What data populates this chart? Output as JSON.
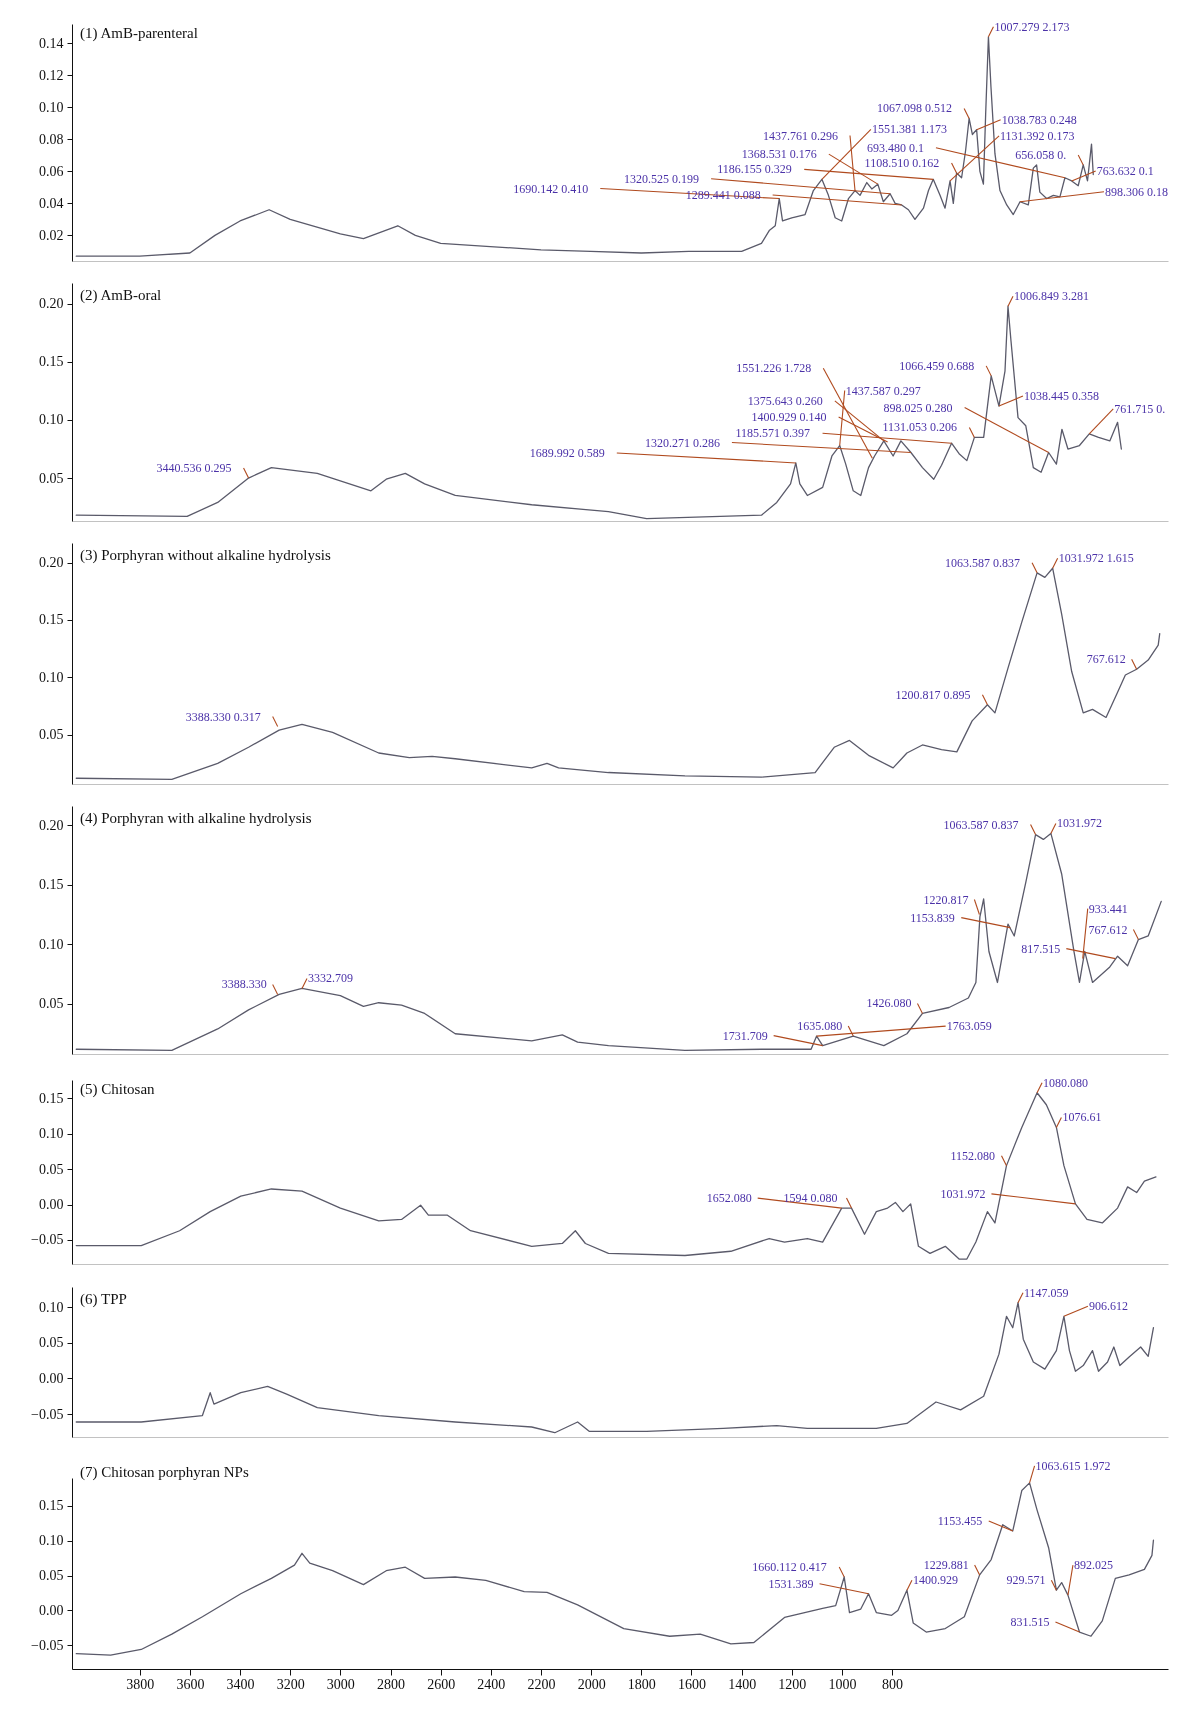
{
  "chart_data": [
    {
      "type": "line",
      "title": "(1) AmB-parenteral",
      "xlim": [
        4070,
        -300
      ],
      "ylim": [
        0.004,
        0.152
      ],
      "yticks": [
        0.02,
        0.04,
        0.06,
        0.08,
        {
          "value": 0.1,
          "label": "0.10"
        },
        0.12,
        0.14
      ],
      "tick_labels": "y",
      "series": [
        {
          "color": "#5a5a6a",
          "x": [
            4053,
            3800,
            3600,
            3500,
            3400,
            3284,
            3200,
            3000,
            2908,
            2771,
            2701,
            2600,
            2402,
            2200,
            2002,
            1800,
            1611,
            1400,
            1321,
            1290,
            1266,
            1250,
            1237,
            1200,
            1147,
            1114,
            1080,
            1054,
            1027,
            1001,
            974,
            948,
            928,
            901,
            881,
            857,
            835,
            808,
            788,
            762,
            735,
            709,
            675,
            655,
            636,
            609,
            589,
            569,
            556,
            543,
            523,
            507,
            493,
            480,
            463,
            450,
            436,
            427,
            416,
            406,
            390,
            370,
            343,
            317,
            290,
            257,
            237,
            224,
            211,
            184,
            157,
            131,
            111,
            84,
            58,
            38,
            21,
            5,
            -2
          ],
          "values": [
            0.007,
            0.007,
            0.009,
            0.02,
            0.029,
            0.036,
            0.03,
            0.021,
            0.018,
            0.026,
            0.02,
            0.015,
            0.013,
            0.011,
            0.01,
            0.009,
            0.01,
            0.01,
            0.015,
            0.023,
            0.026,
            0.043,
            0.029,
            0.031,
            0.033,
            0.048,
            0.055,
            0.045,
            0.031,
            0.029,
            0.043,
            0.048,
            0.045,
            0.053,
            0.049,
            0.052,
            0.041,
            0.046,
            0.04,
            0.039,
            0.036,
            0.03,
            0.037,
            0.048,
            0.055,
            0.045,
            0.037,
            0.054,
            0.04,
            0.059,
            0.056,
            0.073,
            0.093,
            0.083,
            0.086,
            0.06,
            0.052,
            0.096,
            0.144,
            0.113,
            0.071,
            0.048,
            0.039,
            0.033,
            0.041,
            0.039,
            0.062,
            0.064,
            0.047,
            0.043,
            0.045,
            0.044,
            0.056,
            0.054,
            0.051,
            0.064,
            0.054,
            0.077,
            0.058
          ]
        }
      ],
      "annotations": [
        {
          "text": "1007.279 2.173",
          "x": 416,
          "y": 0.144
        },
        {
          "text": "1067.098 0.512",
          "x": 493,
          "y": 0.093
        },
        {
          "text": "1038.783 0.248",
          "x": 463,
          "y": 0.086
        },
        {
          "text": "1108.510 0.162",
          "x": 543,
          "y": 0.059
        },
        {
          "text": "1186.155 0.329",
          "x": 636,
          "y": 0.055
        },
        {
          "text": "656.058 0.",
          "x": 38,
          "y": 0.064
        },
        {
          "text": "693.480 0.1",
          "x": 111,
          "y": 0.056
        },
        {
          "text": "763.632 0.1",
          "x": 84,
          "y": 0.054
        },
        {
          "text": "898.306 0.18",
          "x": 290,
          "y": 0.041
        },
        {
          "text": "1131.392 0.173",
          "x": 569,
          "y": 0.054
        },
        {
          "text": "1289.441 0.088",
          "x": 762,
          "y": 0.039
        },
        {
          "text": "1368.531 0.176",
          "x": 857,
          "y": 0.052
        },
        {
          "text": "1320.525 0.199",
          "x": 808,
          "y": 0.046
        },
        {
          "text": "1437.761 0.296",
          "x": 948,
          "y": 0.048
        },
        {
          "text": "1551.381 1.173",
          "x": 1080,
          "y": 0.055
        },
        {
          "text": "1690.142 0.410",
          "x": 1250,
          "y": 0.043
        }
      ]
    },
    {
      "type": "line",
      "title": "(2) AmB-oral",
      "xlim": [
        4070,
        -300
      ],
      "ylim": [
        0.013,
        0.218
      ],
      "yticks": [
        0.05,
        {
          "value": 0.1,
          "label": "0.10"
        },
        0.15,
        {
          "value": 0.2,
          "label": "0.20"
        }
      ],
      "tick_labels": "y",
      "series": [
        {
          "color": "#5a5a6a",
          "x": [
            4053,
            3611,
            3489,
            3366,
            3275,
            3092,
            2878,
            2817,
            2741,
            2664,
            2542,
            2237,
            1931,
            1779,
            1321,
            1260,
            1205,
            1184,
            1168,
            1138,
            1077,
            1040,
            1009,
            985,
            955,
            925,
            894,
            870,
            833,
            796,
            765,
            725,
            679,
            634,
            603,
            563,
            533,
            502,
            472,
            435,
            405,
            374,
            350,
            338,
            326,
            298,
            267,
            237,
            206,
            176,
            145,
            123,
            99,
            53,
            14,
            -23,
            -68,
            -99,
            -114
          ],
          "values": [
            0.018,
            0.017,
            0.029,
            0.05,
            0.059,
            0.054,
            0.039,
            0.049,
            0.054,
            0.045,
            0.035,
            0.027,
            0.021,
            0.015,
            0.018,
            0.029,
            0.045,
            0.063,
            0.045,
            0.035,
            0.042,
            0.069,
            0.078,
            0.062,
            0.039,
            0.035,
            0.059,
            0.069,
            0.082,
            0.069,
            0.082,
            0.072,
            0.059,
            0.049,
            0.061,
            0.08,
            0.071,
            0.065,
            0.085,
            0.085,
            0.138,
            0.112,
            0.142,
            0.198,
            0.168,
            0.102,
            0.095,
            0.059,
            0.055,
            0.072,
            0.062,
            0.092,
            0.075,
            0.078,
            0.088,
            0.085,
            0.082,
            0.098,
            0.075
          ]
        }
      ],
      "annotations": [
        {
          "text": "1006.849 3.281",
          "x": 338,
          "y": 0.198
        },
        {
          "text": "1066.459 0.688",
          "x": 405,
          "y": 0.138
        },
        {
          "text": "1038.445 0.358",
          "x": 374,
          "y": 0.112
        },
        {
          "text": "1131.053 0.206",
          "x": 472,
          "y": 0.085
        },
        {
          "text": "761.715 0.",
          "x": 14,
          "y": 0.088
        },
        {
          "text": "898.025 0.280",
          "x": 176,
          "y": 0.072
        },
        {
          "text": "1185.571 0.397",
          "x": 563,
          "y": 0.08
        },
        {
          "text": "1320.271 0.286",
          "x": 725,
          "y": 0.072
        },
        {
          "text": "1400.929 0.140",
          "x": 818,
          "y": 0.081
        },
        {
          "text": "1375.643 0.260",
          "x": 833,
          "y": 0.082
        },
        {
          "text": "1437.587 0.297",
          "x": 1009,
          "y": 0.078
        },
        {
          "text": "1551.226 1.728",
          "x": 879,
          "y": 0.067
        },
        {
          "text": "1689.992 0.589",
          "x": 1184,
          "y": 0.063
        },
        {
          "text": "3440.536 0.295",
          "x": 3366,
          "y": 0.05
        }
      ]
    },
    {
      "type": "line",
      "title": "(3) Porphyran without alkaline hydrolysis",
      "xlim": [
        4070,
        -300
      ],
      "ylim": [
        0.007,
        0.217
      ],
      "yticks": [
        0.05,
        {
          "value": 0.1,
          "label": "0.10"
        },
        0.15,
        {
          "value": 0.2,
          "label": "0.20"
        }
      ],
      "tick_labels": "y",
      "series": [
        {
          "color": "#5a5a6a",
          "x": [
            4053,
            3672,
            3489,
            3366,
            3244,
            3153,
            3031,
            2847,
            2725,
            2634,
            2542,
            2237,
            2176,
            2130,
            1931,
            1626,
            1321,
            1107,
            1031,
            970,
            894,
            796,
            741,
            679,
            603,
            542,
            481,
            420,
            390,
            338,
            283,
            222,
            191,
            160,
            124,
            84,
            38,
            1,
            -53,
            -99,
            -130,
            -175,
            -221,
            -261,
            -267
          ],
          "values": [
            0.012,
            0.011,
            0.025,
            0.039,
            0.054,
            0.059,
            0.052,
            0.034,
            0.03,
            0.031,
            0.029,
            0.021,
            0.025,
            0.021,
            0.017,
            0.014,
            0.013,
            0.017,
            0.039,
            0.045,
            0.032,
            0.021,
            0.034,
            0.041,
            0.037,
            0.035,
            0.062,
            0.076,
            0.069,
            0.108,
            0.148,
            0.191,
            0.187,
            0.195,
            0.155,
            0.105,
            0.069,
            0.072,
            0.065,
            0.087,
            0.102,
            0.107,
            0.115,
            0.128,
            0.138
          ]
        }
      ],
      "annotations": [
        {
          "text": "1063.587 0.837",
          "x": 222,
          "y": 0.191
        },
        {
          "text": "1031.972 1.615",
          "x": 160,
          "y": 0.195
        },
        {
          "text": "767.612",
          "x": -175,
          "y": 0.107
        },
        {
          "text": "1200.817 0.895",
          "x": 420,
          "y": 0.076
        },
        {
          "text": "3388.330 0.317",
          "x": 3250,
          "y": 0.057
        }
      ]
    },
    {
      "type": "line",
      "title": "(4) Porphyran with alkaline hydrolysis",
      "xlim": [
        4070,
        -300
      ],
      "ylim": [
        0.008,
        0.216
      ],
      "yticks": [
        0.05,
        {
          "value": 0.1,
          "label": "0.10"
        },
        0.15,
        {
          "value": 0.2,
          "label": "0.20"
        }
      ],
      "tick_labels": "y",
      "series": [
        {
          "color": "#5a5a6a",
          "x": [
            4053,
            3672,
            3489,
            3366,
            3244,
            3153,
            3000,
            2908,
            2847,
            2756,
            2664,
            2542,
            2237,
            2115,
            2054,
            1931,
            1626,
            1321,
            1123,
            1101,
            1077,
            955,
            833,
            741,
            679,
            573,
            496,
            466,
            450,
            435,
            414,
            380,
            338,
            313,
            267,
            228,
            197,
            167,
            124,
            75,
            53,
            32,
            1,
            -68,
            -99,
            -139,
            -182,
            -221,
            -273
          ],
          "values": [
            0.012,
            0.011,
            0.029,
            0.045,
            0.058,
            0.063,
            0.057,
            0.048,
            0.051,
            0.049,
            0.042,
            0.025,
            0.019,
            0.024,
            0.018,
            0.015,
            0.011,
            0.012,
            0.012,
            0.023,
            0.015,
            0.023,
            0.015,
            0.025,
            0.042,
            0.047,
            0.055,
            0.068,
            0.123,
            0.138,
            0.094,
            0.068,
            0.117,
            0.107,
            0.152,
            0.192,
            0.188,
            0.193,
            0.159,
            0.094,
            0.068,
            0.094,
            0.068,
            0.081,
            0.09,
            0.082,
            0.104,
            0.107,
            0.136
          ]
        }
      ],
      "annotations": [
        {
          "text": "1063.587 0.837",
          "x": 228,
          "y": 0.192
        },
        {
          "text": "1031.972",
          "x": 167,
          "y": 0.193
        },
        {
          "text": "1153.839",
          "x": 329,
          "y": 0.114
        },
        {
          "text": "1220.817",
          "x": 452,
          "y": 0.125
        },
        {
          "text": "767.612",
          "x": -182,
          "y": 0.104
        },
        {
          "text": "817.515",
          "x": -90,
          "y": 0.088
        },
        {
          "text": "933.441",
          "x": 40,
          "y": 0.088
        },
        {
          "text": "1426.080",
          "x": 679,
          "y": 0.042
        },
        {
          "text": "1635.080",
          "x": 955,
          "y": 0.023
        },
        {
          "text": "1731.709",
          "x": 1077,
          "y": 0.015
        },
        {
          "text": "1763.059",
          "x": 1101,
          "y": 0.023
        },
        {
          "text": "3332.709",
          "x": 3153,
          "y": 0.063
        },
        {
          "text": "3388.330",
          "x": 3250,
          "y": 0.058
        }
      ]
    },
    {
      "type": "line",
      "title": "(5) Chitosan",
      "xlim": [
        4070,
        -300
      ],
      "ylim": [
        -0.084,
        0.176
      ],
      "yticks": [
        {
          "value": -0.05,
          "label": "−0.05"
        },
        {
          "value": 0,
          "label": "0.00"
        },
        0.05,
        {
          "value": 0.1,
          "label": "0.10"
        },
        0.15
      ],
      "tick_labels": "y",
      "series": [
        {
          "color": "#5a5a6a",
          "x": [
            4053,
            3794,
            3641,
            3519,
            3397,
            3275,
            3153,
            3000,
            2847,
            2756,
            2680,
            2649,
            2573,
            2481,
            2237,
            2115,
            2063,
            2023,
            1931,
            1626,
            1443,
            1290,
            1229,
            1138,
            1077,
            1001,
            962,
            910,
            863,
            818,
            787,
            757,
            726,
            695,
            649,
            588,
            533,
            502,
            466,
            420,
            390,
            344,
            283,
            222,
            185,
            145,
            115,
            69,
            23,
            -38,
            -99,
            -139,
            -175,
            -206,
            -252
          ],
          "values": [
            -0.058,
            -0.058,
            -0.037,
            -0.01,
            0.012,
            0.022,
            0.019,
            -0.005,
            -0.023,
            -0.021,
            -0.001,
            -0.015,
            -0.015,
            -0.037,
            -0.059,
            -0.055,
            -0.037,
            -0.055,
            -0.069,
            -0.072,
            -0.066,
            -0.048,
            -0.053,
            -0.048,
            -0.053,
            -0.005,
            -0.005,
            -0.042,
            -0.01,
            -0.005,
            0.003,
            -0.01,
            0.001,
            -0.059,
            -0.069,
            -0.059,
            -0.077,
            -0.077,
            -0.053,
            -0.01,
            -0.026,
            0.055,
            0.109,
            0.158,
            0.141,
            0.109,
            0.055,
            0.001,
            -0.021,
            -0.026,
            -0.005,
            0.025,
            0.017,
            0.033,
            0.039
          ]
        }
      ],
      "annotations": [
        {
          "text": "1080.080",
          "x": 222,
          "y": 0.158
        },
        {
          "text": "1076.61",
          "x": 145,
          "y": 0.109
        },
        {
          "text": "1152.080",
          "x": 344,
          "y": 0.055
        },
        {
          "text": "1031.972",
          "x": 69,
          "y": 0.001
        },
        {
          "text": "1594 0.080",
          "x": 962,
          "y": -0.005
        },
        {
          "text": "1652.080",
          "x": 1001,
          "y": -0.005
        }
      ]
    },
    {
      "type": "line",
      "title": "(6) TPP",
      "xlim": [
        4070,
        -300
      ],
      "ylim": [
        -0.082,
        0.128
      ],
      "yticks": [
        {
          "value": -0.05,
          "label": "−0.05"
        },
        {
          "value": 0,
          "label": "0.00"
        },
        0.05,
        {
          "value": 0.1,
          "label": "0.10"
        }
      ],
      "tick_labels": "y",
      "series": [
        {
          "color": "#5a5a6a",
          "x": [
            4053,
            3794,
            3550,
            3519,
            3504,
            3397,
            3290,
            3214,
            3092,
            2847,
            2542,
            2237,
            2145,
            2054,
            2008,
            1779,
            1473,
            1260,
            1138,
            863,
            741,
            625,
            527,
            435,
            374,
            344,
            319,
            298,
            277,
            237,
            191,
            145,
            115,
            93,
            69,
            38,
            1,
            -23,
            -59,
            -84,
            -108,
            -145,
            -191,
            -221,
            -242
          ],
          "values": [
            -0.061,
            -0.061,
            -0.052,
            -0.02,
            -0.036,
            -0.02,
            -0.011,
            -0.022,
            -0.041,
            -0.052,
            -0.061,
            -0.068,
            -0.076,
            -0.061,
            -0.074,
            -0.074,
            -0.07,
            -0.066,
            -0.07,
            -0.07,
            -0.063,
            -0.033,
            -0.044,
            -0.025,
            0.034,
            0.087,
            0.071,
            0.106,
            0.055,
            0.023,
            0.013,
            0.039,
            0.087,
            0.039,
            0.01,
            0.018,
            0.039,
            0.01,
            0.023,
            0.044,
            0.018,
            0.03,
            0.044,
            0.031,
            0.071
          ]
        }
      ],
      "annotations": [
        {
          "text": "1147.059",
          "x": 298,
          "y": 0.106
        },
        {
          "text": "906.612",
          "x": 115,
          "y": 0.087
        }
      ]
    },
    {
      "type": "line",
      "title": "(7) Chitosan porphyran NPs",
      "xlim": [
        4070,
        -300
      ],
      "ylim": [
        -0.084,
        0.19
      ],
      "xticks": [
        3800,
        3600,
        3400,
        3200,
        3000,
        2800,
        2600,
        2400,
        2200,
        2000,
        1800,
        1600,
        1400,
        1200,
        1000,
        800
      ],
      "yticks": [
        {
          "value": -0.05,
          "label": "−0.05"
        },
        {
          "value": 0,
          "label": "0.00"
        },
        0.05,
        {
          "value": 0.1,
          "label": "0.10"
        },
        0.15
      ],
      "series": [
        {
          "color": "#5a5a6a",
          "x": [
            4053,
            3916,
            3794,
            3672,
            3550,
            3397,
            3275,
            3183,
            3153,
            3122,
            3031,
            2908,
            2817,
            2741,
            2664,
            2542,
            2420,
            2267,
            2176,
            2054,
            1870,
            1687,
            1565,
            1443,
            1351,
            1229,
            1077,
            1025,
            991,
            970,
            925,
            894,
            863,
            802,
            777,
            741,
            716,
            664,
            588,
            512,
            451,
            405,
            359,
            319,
            283,
            252,
            222,
            176,
            145,
            124,
            99,
            53,
            7,
            -38,
            -90,
            -145,
            -206,
            -236,
            -242
          ],
          "values": [
            -0.062,
            -0.064,
            -0.056,
            -0.034,
            -0.009,
            0.024,
            0.046,
            0.065,
            0.082,
            0.068,
            0.057,
            0.037,
            0.057,
            0.062,
            0.046,
            0.048,
            0.043,
            0.027,
            0.026,
            0.008,
            -0.026,
            -0.037,
            -0.034,
            -0.048,
            -0.046,
            -0.01,
            0.003,
            0.007,
            0.048,
            -0.003,
            0.002,
            0.024,
            -0.003,
            -0.007,
            0.0,
            0.029,
            -0.018,
            -0.031,
            -0.026,
            -0.009,
            0.051,
            0.073,
            0.123,
            0.114,
            0.172,
            0.183,
            0.144,
            0.09,
            0.029,
            0.04,
            0.022,
            -0.031,
            -0.037,
            -0.015,
            0.046,
            0.051,
            0.059,
            0.079,
            0.101
          ]
        }
      ],
      "annotations": [
        {
          "text": "1063.615 1.972",
          "x": 252,
          "y": 0.183
        },
        {
          "text": "1153.455",
          "x": 319,
          "y": 0.114
        },
        {
          "text": "1229.881",
          "x": 451,
          "y": 0.051
        },
        {
          "text": "929.571",
          "x": 145,
          "y": 0.029
        },
        {
          "text": "892.025",
          "x": 99,
          "y": 0.022
        },
        {
          "text": "831.515",
          "x": 53,
          "y": -0.031
        },
        {
          "text": "1400.929",
          "x": 741,
          "y": 0.029
        },
        {
          "text": "1531.389",
          "x": 894,
          "y": 0.024
        },
        {
          "text": "1660.112 0.417",
          "x": 991,
          "y": 0.048
        }
      ]
    }
  ]
}
